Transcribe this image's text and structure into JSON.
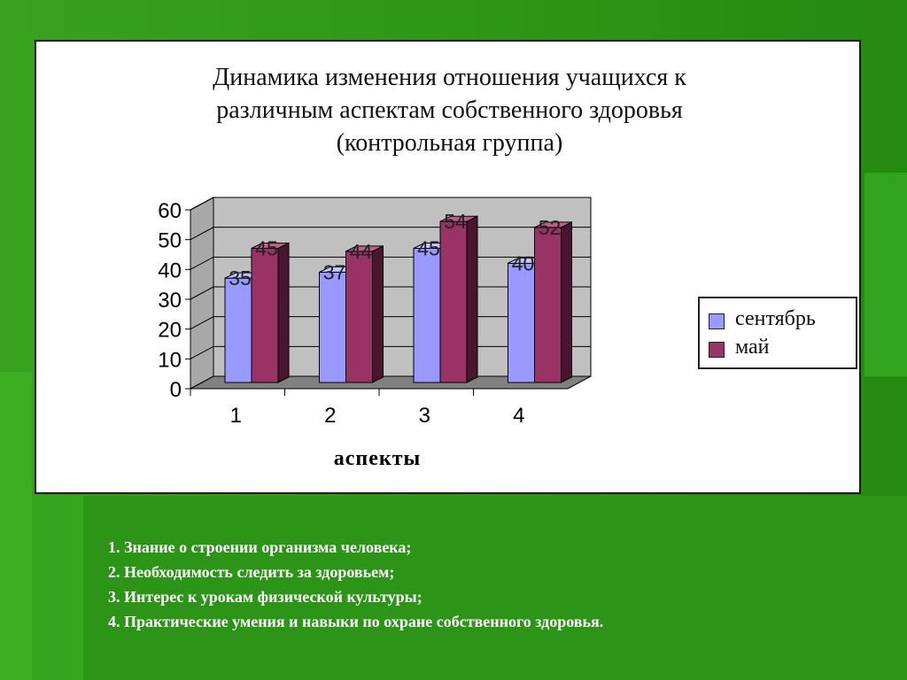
{
  "chart_data": {
    "type": "bar",
    "title_lines": [
      "Динамика изменения отношения учащихся к",
      "различным аспектам собственного здоровья",
      "(контрольная группа)"
    ],
    "xlabel": "аспекты",
    "ylabel": "",
    "categories": [
      "1",
      "2",
      "3",
      "4"
    ],
    "ylim": [
      0,
      60
    ],
    "yticks": [
      "0",
      "10",
      "20",
      "30",
      "40",
      "50",
      "60"
    ],
    "series": [
      {
        "name": "сентябрь",
        "values": [
          35,
          37,
          45,
          40
        ],
        "color": "#9999ff"
      },
      {
        "name": "май",
        "values": [
          45,
          44,
          54,
          52
        ],
        "color": "#993366"
      }
    ],
    "legend": "right",
    "grid": true,
    "style": "3d-columns"
  },
  "notes": [
    "1. Знание о строении организма человека;",
    "2. Необходимость следить за здоровьем;",
    "3. Интерес к урокам физической культуры;",
    "4. Практические умения и навыки по охране собственного здоровья."
  ],
  "colors": {
    "background_green": "#2f9a18",
    "wall": "#c0c0c0",
    "floor": "#808080",
    "panel": "#ffffff"
  }
}
